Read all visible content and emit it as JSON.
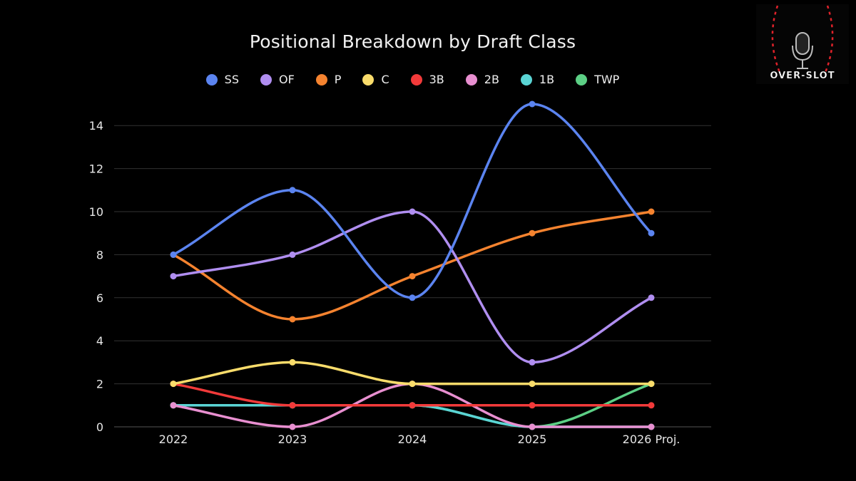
{
  "chart_data": {
    "type": "line",
    "title": "Positional Breakdown by Draft Class",
    "xlabel": "",
    "ylabel": "",
    "categories": [
      "2022",
      "2023",
      "2024",
      "2025",
      "2026 Proj."
    ],
    "ylim": [
      0,
      15
    ],
    "yticks": [
      0,
      2,
      4,
      6,
      8,
      10,
      12,
      14
    ],
    "grid": true,
    "legend_position": "top-center",
    "series": [
      {
        "name": "SS",
        "color": "#5b84f0",
        "values": [
          8,
          11,
          6,
          15,
          9
        ]
      },
      {
        "name": "OF",
        "color": "#b08ef0",
        "values": [
          7,
          8,
          10,
          3,
          6
        ]
      },
      {
        "name": "P",
        "color": "#f5832f",
        "values": [
          8,
          5,
          7,
          9,
          10
        ]
      },
      {
        "name": "C",
        "color": "#f9dc6b",
        "values": [
          2,
          3,
          2,
          2,
          2
        ]
      },
      {
        "name": "3B",
        "color": "#f23a3a",
        "values": [
          2,
          1,
          1,
          1,
          1
        ]
      },
      {
        "name": "2B",
        "color": "#e88fd0",
        "values": [
          1,
          0,
          2,
          0,
          0
        ]
      },
      {
        "name": "1B",
        "color": "#5ad4d4",
        "values": [
          1,
          1,
          1,
          0,
          0
        ]
      },
      {
        "name": "TWP",
        "color": "#5ccf85",
        "values": [
          1,
          1,
          1,
          0,
          2
        ]
      }
    ]
  },
  "logo": {
    "text": "OVER-SLOT",
    "icon": "microphone-baseball-icon"
  }
}
